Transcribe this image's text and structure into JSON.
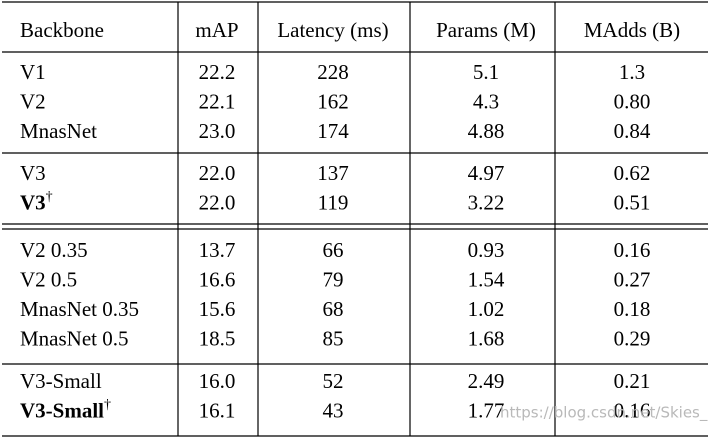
{
  "table": {
    "header": [
      "Backbone",
      "mAP",
      "Latency (ms)",
      "Params (M)",
      "MAdds (B)"
    ],
    "groups": [
      [
        [
          "V1",
          "22.2",
          "228",
          "5.1",
          "1.3"
        ],
        [
          "V2",
          "22.1",
          "162",
          "4.3",
          "0.80"
        ],
        [
          "MnasNet",
          "23.0",
          "174",
          "4.88",
          "0.84"
        ]
      ],
      [
        [
          "V3",
          "22.0",
          "137",
          "4.97",
          "0.62"
        ],
        [
          {
            "text": "V3",
            "sup": "†",
            "bold": true
          },
          "22.0",
          "119",
          "3.22",
          "0.51"
        ]
      ],
      [
        [
          "V2 0.35",
          "13.7",
          "66",
          "0.93",
          "0.16"
        ],
        [
          "V2 0.5",
          "16.6",
          "79",
          "1.54",
          "0.27"
        ],
        [
          "MnasNet 0.35",
          "15.6",
          "68",
          "1.02",
          "0.18"
        ],
        [
          "MnasNet 0.5",
          "18.5",
          "85",
          "1.68",
          "0.29"
        ]
      ],
      [
        [
          "V3-Small",
          "16.0",
          "52",
          "2.49",
          "0.21"
        ],
        [
          {
            "text": "V3-Small",
            "sup": "†",
            "bold": true
          },
          "16.1",
          "43",
          "1.77",
          "0.16"
        ]
      ]
    ]
  },
  "watermark": "https://blog.csdn.net/Skies_"
}
